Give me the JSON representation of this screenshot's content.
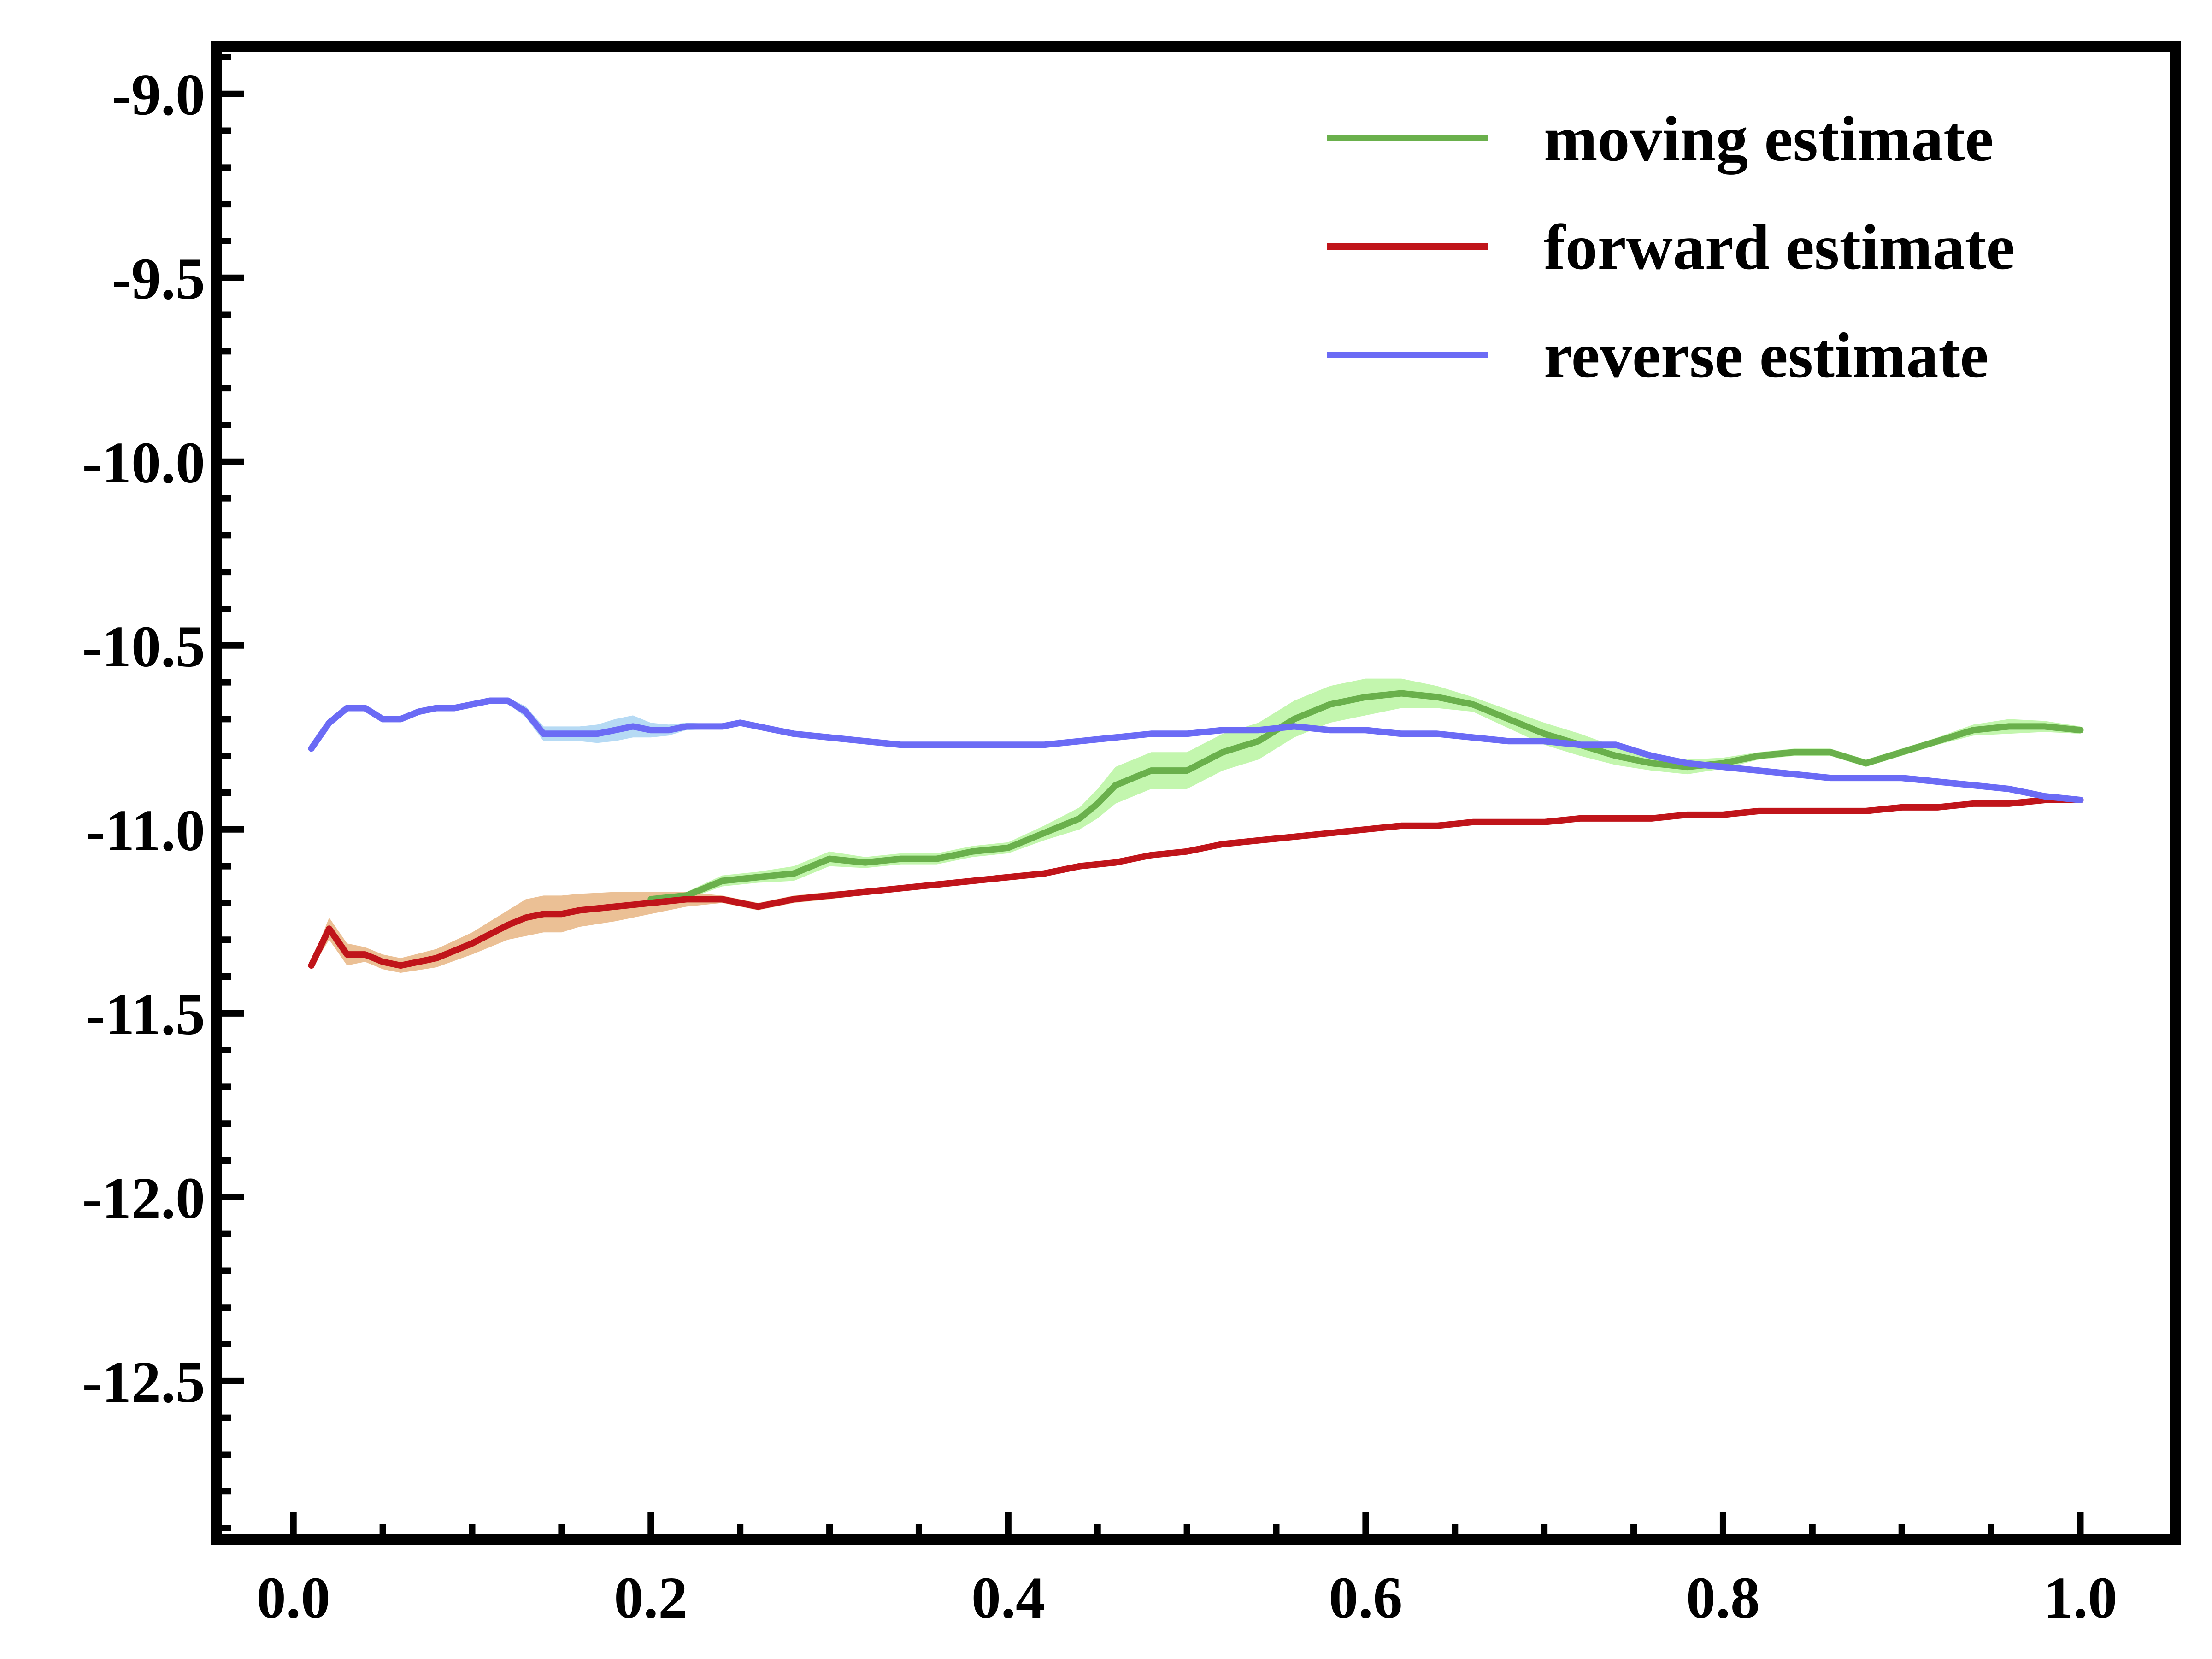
{
  "chart_data": {
    "type": "line",
    "title": "",
    "xlabel": "",
    "ylabel": "",
    "xlim": [
      -0.043,
      1.053
    ],
    "ylim": [
      -12.93,
      -8.87
    ],
    "x_ticks": [
      0.0,
      0.2,
      0.4,
      0.6,
      0.8,
      1.0
    ],
    "x_tick_labels": [
      "0.0",
      "0.2",
      "0.4",
      "0.6",
      "0.8",
      "1.0"
    ],
    "y_ticks": [
      -9.0,
      -9.5,
      -10.0,
      -10.5,
      -11.0,
      -11.5,
      -12.0,
      -12.5
    ],
    "y_tick_labels": [
      "-9.0",
      "-9.5",
      "-10.0",
      "-10.5",
      "-11.0",
      "-11.5",
      "-12.0",
      "-12.5"
    ],
    "grid": false,
    "legend": {
      "placement": "top-right"
    },
    "series": [
      {
        "name": "moving estimate",
        "color": "#6ab04c",
        "band_color": "#b9f5a0",
        "x": [
          0.2,
          0.22,
          0.24,
          0.26,
          0.28,
          0.3,
          0.32,
          0.34,
          0.36,
          0.38,
          0.4,
          0.42,
          0.44,
          0.45,
          0.46,
          0.48,
          0.5,
          0.52,
          0.54,
          0.56,
          0.58,
          0.6,
          0.62,
          0.64,
          0.66,
          0.68,
          0.7,
          0.72,
          0.74,
          0.76,
          0.78,
          0.8,
          0.82,
          0.84,
          0.86,
          0.88,
          0.9,
          0.92,
          0.94,
          0.96,
          0.98,
          1.0
        ],
        "values": [
          -11.19,
          -11.18,
          -11.14,
          -11.13,
          -11.12,
          -11.08,
          -11.09,
          -11.08,
          -11.08,
          -11.06,
          -11.05,
          -11.01,
          -10.97,
          -10.93,
          -10.88,
          -10.84,
          -10.84,
          -10.79,
          -10.76,
          -10.7,
          -10.66,
          -10.64,
          -10.63,
          -10.64,
          -10.66,
          -10.7,
          -10.74,
          -10.77,
          -10.8,
          -10.82,
          -10.83,
          -10.82,
          -10.8,
          -10.79,
          -10.79,
          -10.82,
          -10.79,
          -10.76,
          -10.73,
          -10.72,
          -10.72,
          -10.73
        ],
        "band": [
          0.01,
          0.01,
          0.015,
          0.015,
          0.02,
          0.02,
          0.015,
          0.015,
          0.015,
          0.015,
          0.015,
          0.02,
          0.03,
          0.04,
          0.05,
          0.05,
          0.05,
          0.05,
          0.05,
          0.05,
          0.05,
          0.05,
          0.04,
          0.03,
          0.02,
          0.025,
          0.03,
          0.03,
          0.025,
          0.02,
          0.02,
          0.015,
          0.01,
          0.01,
          0.01,
          0.01,
          0.01,
          0.01,
          0.015,
          0.02,
          0.015,
          0.01
        ]
      },
      {
        "name": "forward estimate",
        "color": "#c0141a",
        "band_color": "#e8b583",
        "x": [
          0.01,
          0.02,
          0.03,
          0.04,
          0.05,
          0.06,
          0.08,
          0.1,
          0.12,
          0.13,
          0.14,
          0.15,
          0.16,
          0.18,
          0.2,
          0.22,
          0.24,
          0.25,
          0.26,
          0.28,
          0.3,
          0.32,
          0.34,
          0.36,
          0.38,
          0.4,
          0.42,
          0.44,
          0.46,
          0.48,
          0.5,
          0.52,
          0.54,
          0.56,
          0.58,
          0.6,
          0.62,
          0.64,
          0.66,
          0.68,
          0.7,
          0.72,
          0.74,
          0.76,
          0.78,
          0.8,
          0.82,
          0.84,
          0.86,
          0.88,
          0.9,
          0.92,
          0.94,
          0.96,
          0.98,
          1.0
        ],
        "values": [
          -11.37,
          -11.27,
          -11.34,
          -11.34,
          -11.36,
          -11.37,
          -11.35,
          -11.31,
          -11.26,
          -11.24,
          -11.23,
          -11.23,
          -11.22,
          -11.21,
          -11.2,
          -11.19,
          -11.19,
          -11.2,
          -11.21,
          -11.19,
          -11.18,
          -11.17,
          -11.16,
          -11.15,
          -11.14,
          -11.13,
          -11.12,
          -11.1,
          -11.09,
          -11.07,
          -11.06,
          -11.04,
          -11.03,
          -11.02,
          -11.01,
          -11.0,
          -10.99,
          -10.99,
          -10.98,
          -10.98,
          -10.98,
          -10.97,
          -10.97,
          -10.97,
          -10.96,
          -10.96,
          -10.95,
          -10.95,
          -10.95,
          -10.95,
          -10.94,
          -10.94,
          -10.93,
          -10.93,
          -10.92,
          -10.92
        ],
        "band": [
          0.01,
          0.03,
          0.03,
          0.02,
          0.02,
          0.02,
          0.025,
          0.03,
          0.04,
          0.05,
          0.05,
          0.05,
          0.045,
          0.04,
          0.03,
          0.02,
          0.01,
          0.01,
          0.01,
          0.01,
          0.01,
          0.008,
          0.008,
          0.008,
          0.008,
          0.008,
          0.008,
          0.008,
          0.008,
          0.008,
          0.008,
          0.008,
          0.008,
          0.008,
          0.008,
          0.006,
          0.006,
          0.006,
          0.006,
          0.006,
          0.006,
          0.006,
          0.006,
          0.006,
          0.006,
          0.006,
          0.006,
          0.006,
          0.006,
          0.006,
          0.006,
          0.006,
          0.006,
          0.006,
          0.006,
          0.006
        ]
      },
      {
        "name": "reverse estimate",
        "color": "#6b6bf5",
        "band_color": "#a9d3f2",
        "x": [
          0.01,
          0.02,
          0.03,
          0.04,
          0.05,
          0.06,
          0.07,
          0.08,
          0.09,
          0.1,
          0.11,
          0.12,
          0.13,
          0.14,
          0.15,
          0.16,
          0.17,
          0.18,
          0.19,
          0.2,
          0.21,
          0.22,
          0.23,
          0.24,
          0.25,
          0.26,
          0.28,
          0.3,
          0.32,
          0.34,
          0.36,
          0.38,
          0.4,
          0.42,
          0.44,
          0.46,
          0.48,
          0.5,
          0.52,
          0.54,
          0.56,
          0.58,
          0.6,
          0.62,
          0.64,
          0.66,
          0.68,
          0.7,
          0.72,
          0.74,
          0.76,
          0.78,
          0.8,
          0.82,
          0.84,
          0.86,
          0.88,
          0.9,
          0.92,
          0.94,
          0.96,
          0.98,
          1.0
        ],
        "values": [
          -10.78,
          -10.71,
          -10.67,
          -10.67,
          -10.7,
          -10.7,
          -10.68,
          -10.67,
          -10.67,
          -10.66,
          -10.65,
          -10.65,
          -10.68,
          -10.74,
          -10.74,
          -10.74,
          -10.74,
          -10.73,
          -10.72,
          -10.73,
          -10.73,
          -10.72,
          -10.72,
          -10.72,
          -10.71,
          -10.72,
          -10.74,
          -10.75,
          -10.76,
          -10.77,
          -10.77,
          -10.77,
          -10.77,
          -10.77,
          -10.76,
          -10.75,
          -10.74,
          -10.74,
          -10.73,
          -10.73,
          -10.72,
          -10.73,
          -10.73,
          -10.74,
          -10.74,
          -10.75,
          -10.76,
          -10.76,
          -10.77,
          -10.77,
          -10.8,
          -10.82,
          -10.83,
          -10.84,
          -10.85,
          -10.86,
          -10.86,
          -10.86,
          -10.87,
          -10.88,
          -10.89,
          -10.91,
          -10.92
        ],
        "band": [
          0.006,
          0.006,
          0.006,
          0.006,
          0.008,
          0.008,
          0.008,
          0.008,
          0.008,
          0.008,
          0.008,
          0.008,
          0.015,
          0.02,
          0.02,
          0.02,
          0.025,
          0.03,
          0.03,
          0.02,
          0.015,
          0.01,
          0.008,
          0.008,
          0.008,
          0.008,
          0.008,
          0.006,
          0.006,
          0.006,
          0.006,
          0.006,
          0.006,
          0.006,
          0.006,
          0.006,
          0.006,
          0.006,
          0.006,
          0.006,
          0.006,
          0.006,
          0.006,
          0.006,
          0.006,
          0.006,
          0.006,
          0.006,
          0.006,
          0.006,
          0.006,
          0.006,
          0.006,
          0.006,
          0.006,
          0.006,
          0.006,
          0.006,
          0.006,
          0.006,
          0.006,
          0.006,
          0.006
        ]
      }
    ]
  }
}
